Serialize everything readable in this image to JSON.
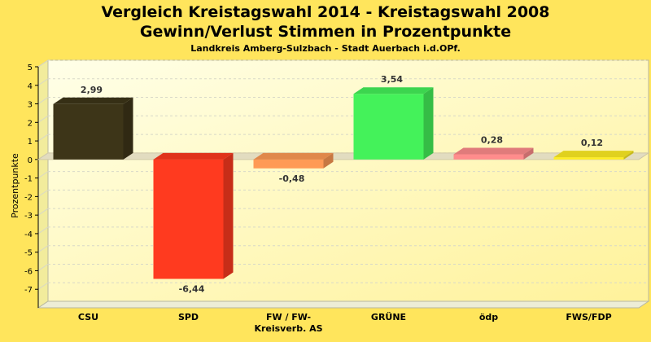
{
  "chart_data": {
    "type": "bar",
    "title_line1": "Vergleich Kreistagswahl 2014 - Kreistagswahl 2008",
    "title_line2": "Gewinn/Verlust Stimmen in Prozentpunkte",
    "subtitle": "Landkreis Amberg-Sulzbach - Stadt Auerbach i.d.OPf.",
    "ylabel": "Prozentpunkte",
    "xlabel": "",
    "ylim": [
      -8,
      5
    ],
    "yticks": [
      5,
      4,
      3,
      2,
      1,
      0,
      -1,
      -2,
      -3,
      -4,
      -5,
      -6,
      -7
    ],
    "grid": true,
    "categories": [
      "CSU",
      "SPD",
      "FW / FW-",
      "GRÜNE",
      "ödp",
      "FWS/FDP"
    ],
    "category_line2": [
      "",
      "",
      "Kreisverb. AS",
      "",
      "",
      ""
    ],
    "values": [
      2.99,
      -6.44,
      -0.48,
      3.54,
      0.28,
      0.12
    ],
    "value_labels": [
      "2,99",
      "-6,44",
      "-0,48",
      "3,54",
      "0,28",
      "0,12"
    ],
    "colors": [
      "#3d3518",
      "#ff3a1f",
      "#ff9a55",
      "#44f25a",
      "#ff8c8c",
      "#ffee22"
    ]
  }
}
